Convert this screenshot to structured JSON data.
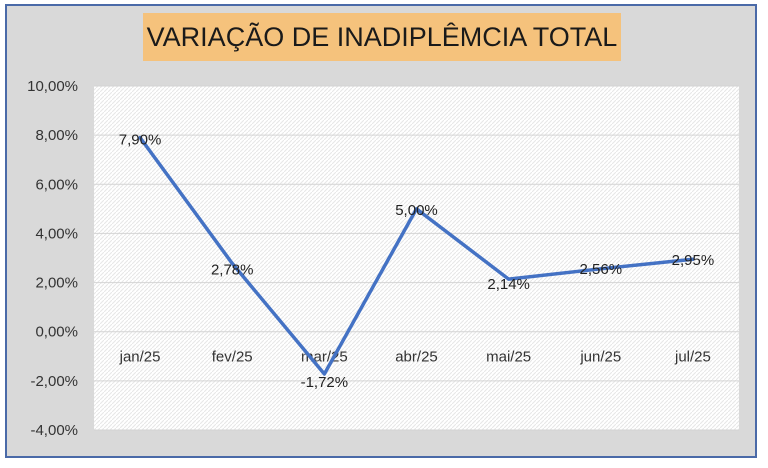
{
  "chart_data": {
    "type": "line",
    "title": "VARIAÇÃO DE INADIPLÊMCIA TOTAL",
    "categories": [
      "jan/25",
      "fev/25",
      "mar/25",
      "abr/25",
      "mai/25",
      "jun/25",
      "jul/25"
    ],
    "series": [
      {
        "values": [
          7.9,
          2.78,
          -1.72,
          5.0,
          2.14,
          2.56,
          2.95
        ],
        "labels": [
          "7,90%",
          "2,78%",
          "-1,72%",
          "5,00%",
          "2,14%",
          "2,56%",
          "2,95%"
        ]
      }
    ],
    "ylim": [
      -4,
      10
    ],
    "yticks": [
      10,
      8,
      6,
      4,
      2,
      0,
      -2,
      -4
    ],
    "ytick_labels": [
      "10,00%",
      "8,00%",
      "6,00%",
      "4,00%",
      "2,00%",
      "0,00%",
      "-2,00%",
      "-4,00%"
    ],
    "grid": true,
    "legend": "none",
    "colors": {
      "line": "#4472c4",
      "background": "#d9d9d9",
      "title_background": "#f5c27c",
      "border": "#4a6aa8"
    }
  }
}
